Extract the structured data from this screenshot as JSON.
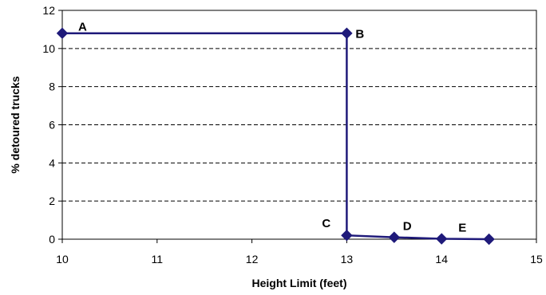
{
  "chart_data": {
    "type": "line",
    "xlabel": "Height Limit (feet)",
    "ylabel": "% detoured trucks",
    "xlim": [
      10,
      15
    ],
    "ylim": [
      0,
      12
    ],
    "x_ticks": [
      "10",
      "11",
      "12",
      "13",
      "14",
      "15"
    ],
    "y_ticks": [
      "0",
      "2",
      "4",
      "6",
      "8",
      "10",
      "12"
    ],
    "grid": "horizontal dashed",
    "legend": "none",
    "series": [
      {
        "color": "#1f1a7a",
        "marker": "diamond",
        "x": [
          10,
          13,
          13,
          13.5,
          14,
          14.5
        ],
        "y": [
          10.8,
          10.8,
          0.2,
          0.1,
          0.02,
          0.0
        ]
      }
    ],
    "annotations": [
      {
        "text": "A",
        "x": 10,
        "y": 10.8
      },
      {
        "text": "B",
        "x": 13,
        "y": 10.8
      },
      {
        "text": "C",
        "x": 13,
        "y": 0.2
      },
      {
        "text": "D",
        "x": 13.5,
        "y": 0.1
      },
      {
        "text": "E",
        "x": 14,
        "y": 0.02
      }
    ]
  }
}
